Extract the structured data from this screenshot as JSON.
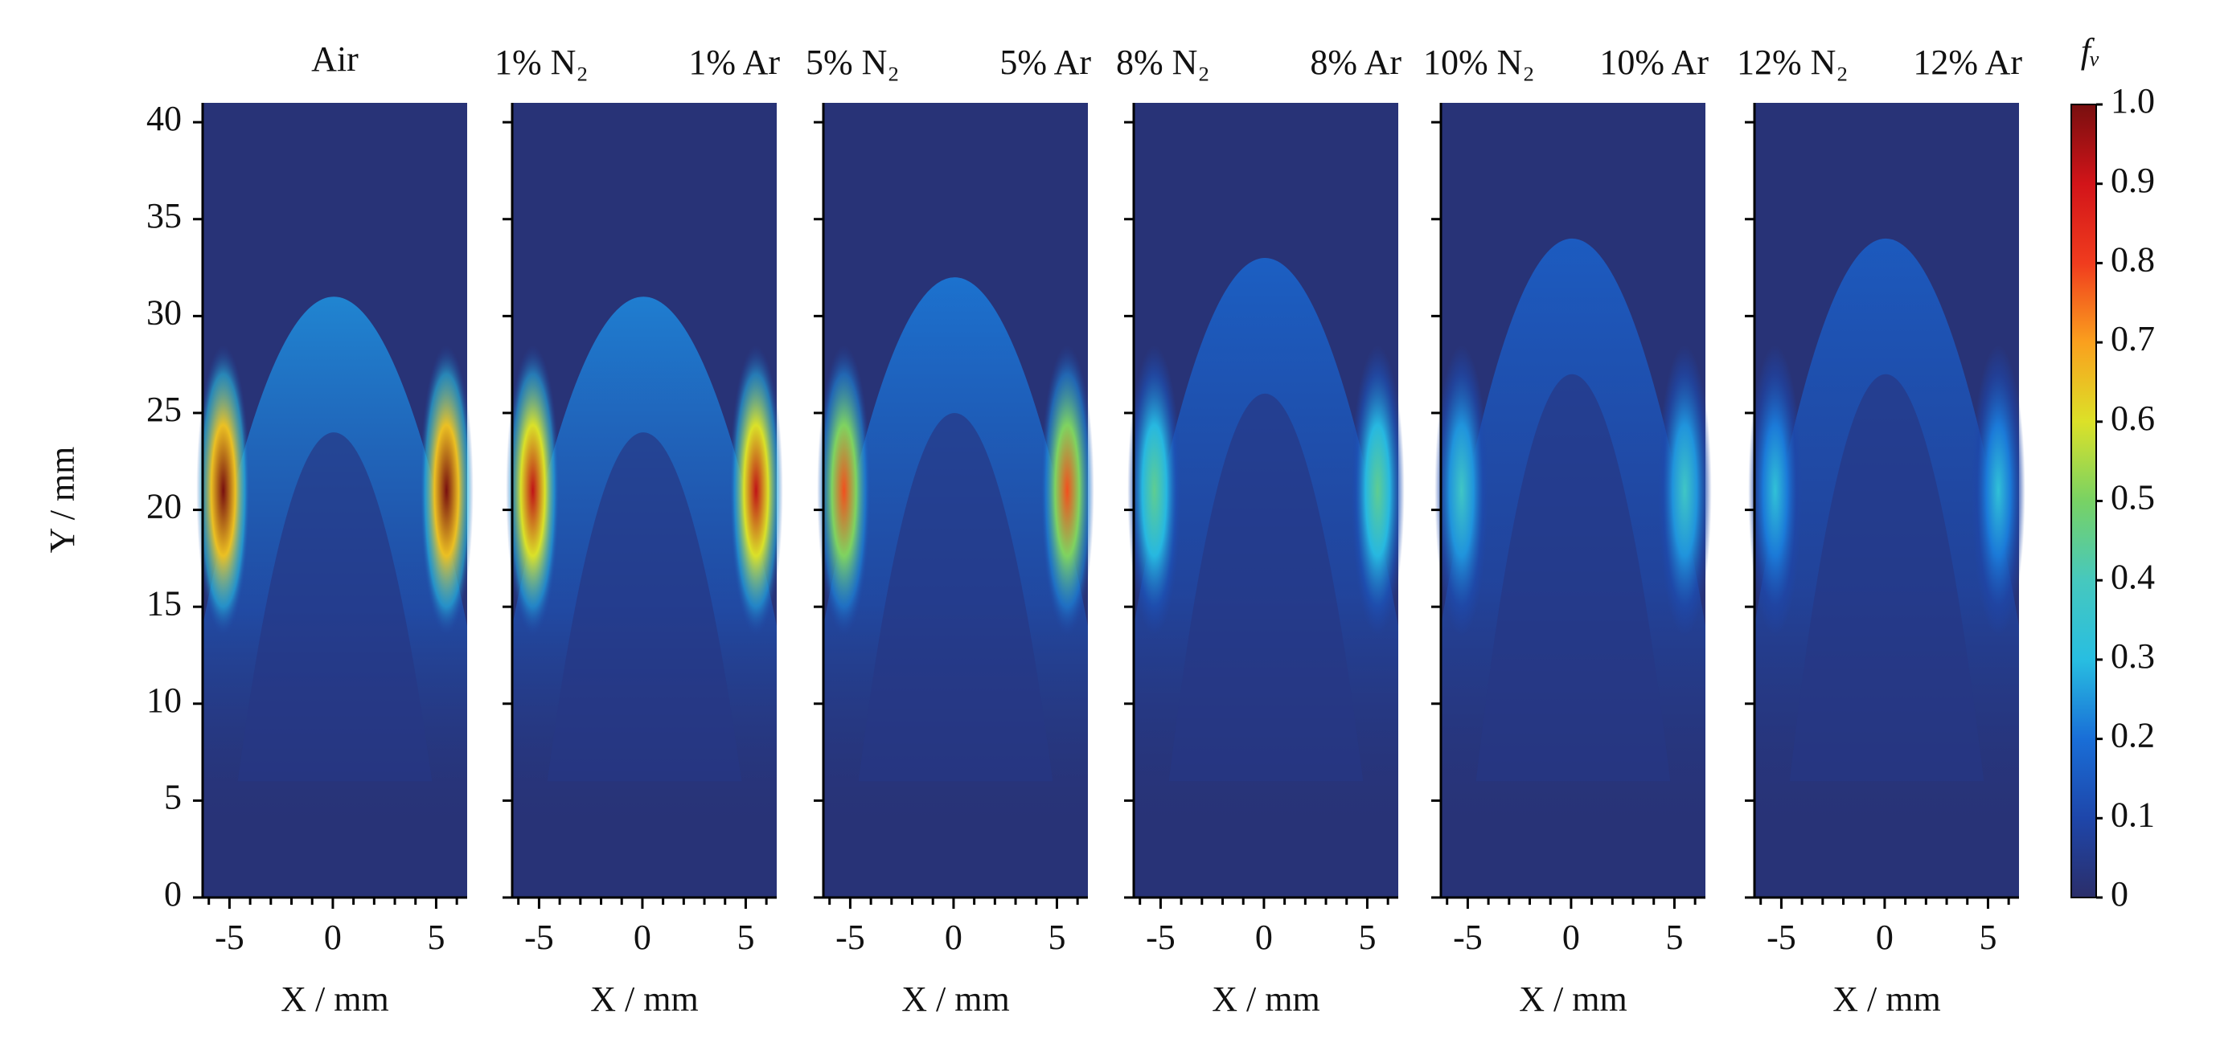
{
  "chart_data": {
    "type": "heatmap-panels",
    "ylabel": "Y / mm",
    "xlabel": "X / mm",
    "xlim": [
      -6.3,
      6.5
    ],
    "xticks": [
      -5,
      0,
      5
    ],
    "xminorticks": [
      -6,
      -4,
      -3,
      -2,
      -1,
      1,
      2,
      3,
      4,
      6
    ],
    "ylim": [
      0,
      41
    ],
    "yticks": [
      0,
      5,
      10,
      15,
      20,
      25,
      30,
      35,
      40
    ],
    "colorbar": {
      "label": "fᵥ",
      "lim": [
        0,
        1
      ],
      "ticks": [
        0,
        {
          "value": 0.1,
          "label": "0.1"
        },
        {
          "value": 0.2,
          "label": "0.2"
        },
        {
          "value": 0.3,
          "label": "0.3"
        },
        {
          "value": 0.4,
          "label": "0.4"
        },
        {
          "value": 0.5,
          "label": "0.5"
        },
        {
          "value": 0.6,
          "label": "0.6"
        },
        {
          "value": 0.7,
          "label": "0.7"
        },
        {
          "value": 0.8,
          "label": "0.8"
        },
        {
          "value": 0.9,
          "label": "0.9"
        },
        {
          "value": 1,
          "label": "1.0"
        }
      ]
    },
    "panels": [
      {
        "labels": [
          "Air"
        ],
        "peak": 1.0,
        "tip": 31
      },
      {
        "labels": [
          "1% N₂",
          "1% Ar"
        ],
        "peak": 0.92,
        "tip": 31
      },
      {
        "labels": [
          "5% N₂",
          "5% Ar"
        ],
        "peak": 0.78,
        "tip": 32
      },
      {
        "labels": [
          "8% N₂",
          "8% Ar"
        ],
        "peak": 0.45,
        "tip": 33
      },
      {
        "labels": [
          "10% N₂",
          "10% Ar"
        ],
        "peak": 0.38,
        "tip": 34
      },
      {
        "labels": [
          "12% N₂",
          "12% Ar"
        ],
        "peak": 0.33,
        "tip": 34
      }
    ]
  }
}
